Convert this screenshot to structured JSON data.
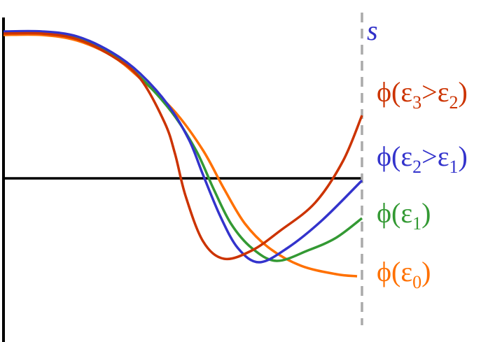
{
  "axis_label": "s",
  "labels": [
    {
      "segments": [
        {
          "text": "ϕ(ε"
        },
        {
          "text": "3",
          "sub": true
        },
        {
          "text": ">ε"
        },
        {
          "text": "2",
          "sub": true
        },
        {
          "text": ")"
        }
      ]
    },
    {
      "segments": [
        {
          "text": "ϕ(ε"
        },
        {
          "text": "2",
          "sub": true
        },
        {
          "text": ">ε"
        },
        {
          "text": "1",
          "sub": true
        },
        {
          "text": ")"
        }
      ]
    },
    {
      "segments": [
        {
          "text": "ϕ(ε"
        },
        {
          "text": "1",
          "sub": true
        },
        {
          "text": ")"
        }
      ]
    },
    {
      "segments": [
        {
          "text": "ϕ(ε"
        },
        {
          "text": "0",
          "sub": true
        },
        {
          "text": ")"
        }
      ]
    }
  ]
}
